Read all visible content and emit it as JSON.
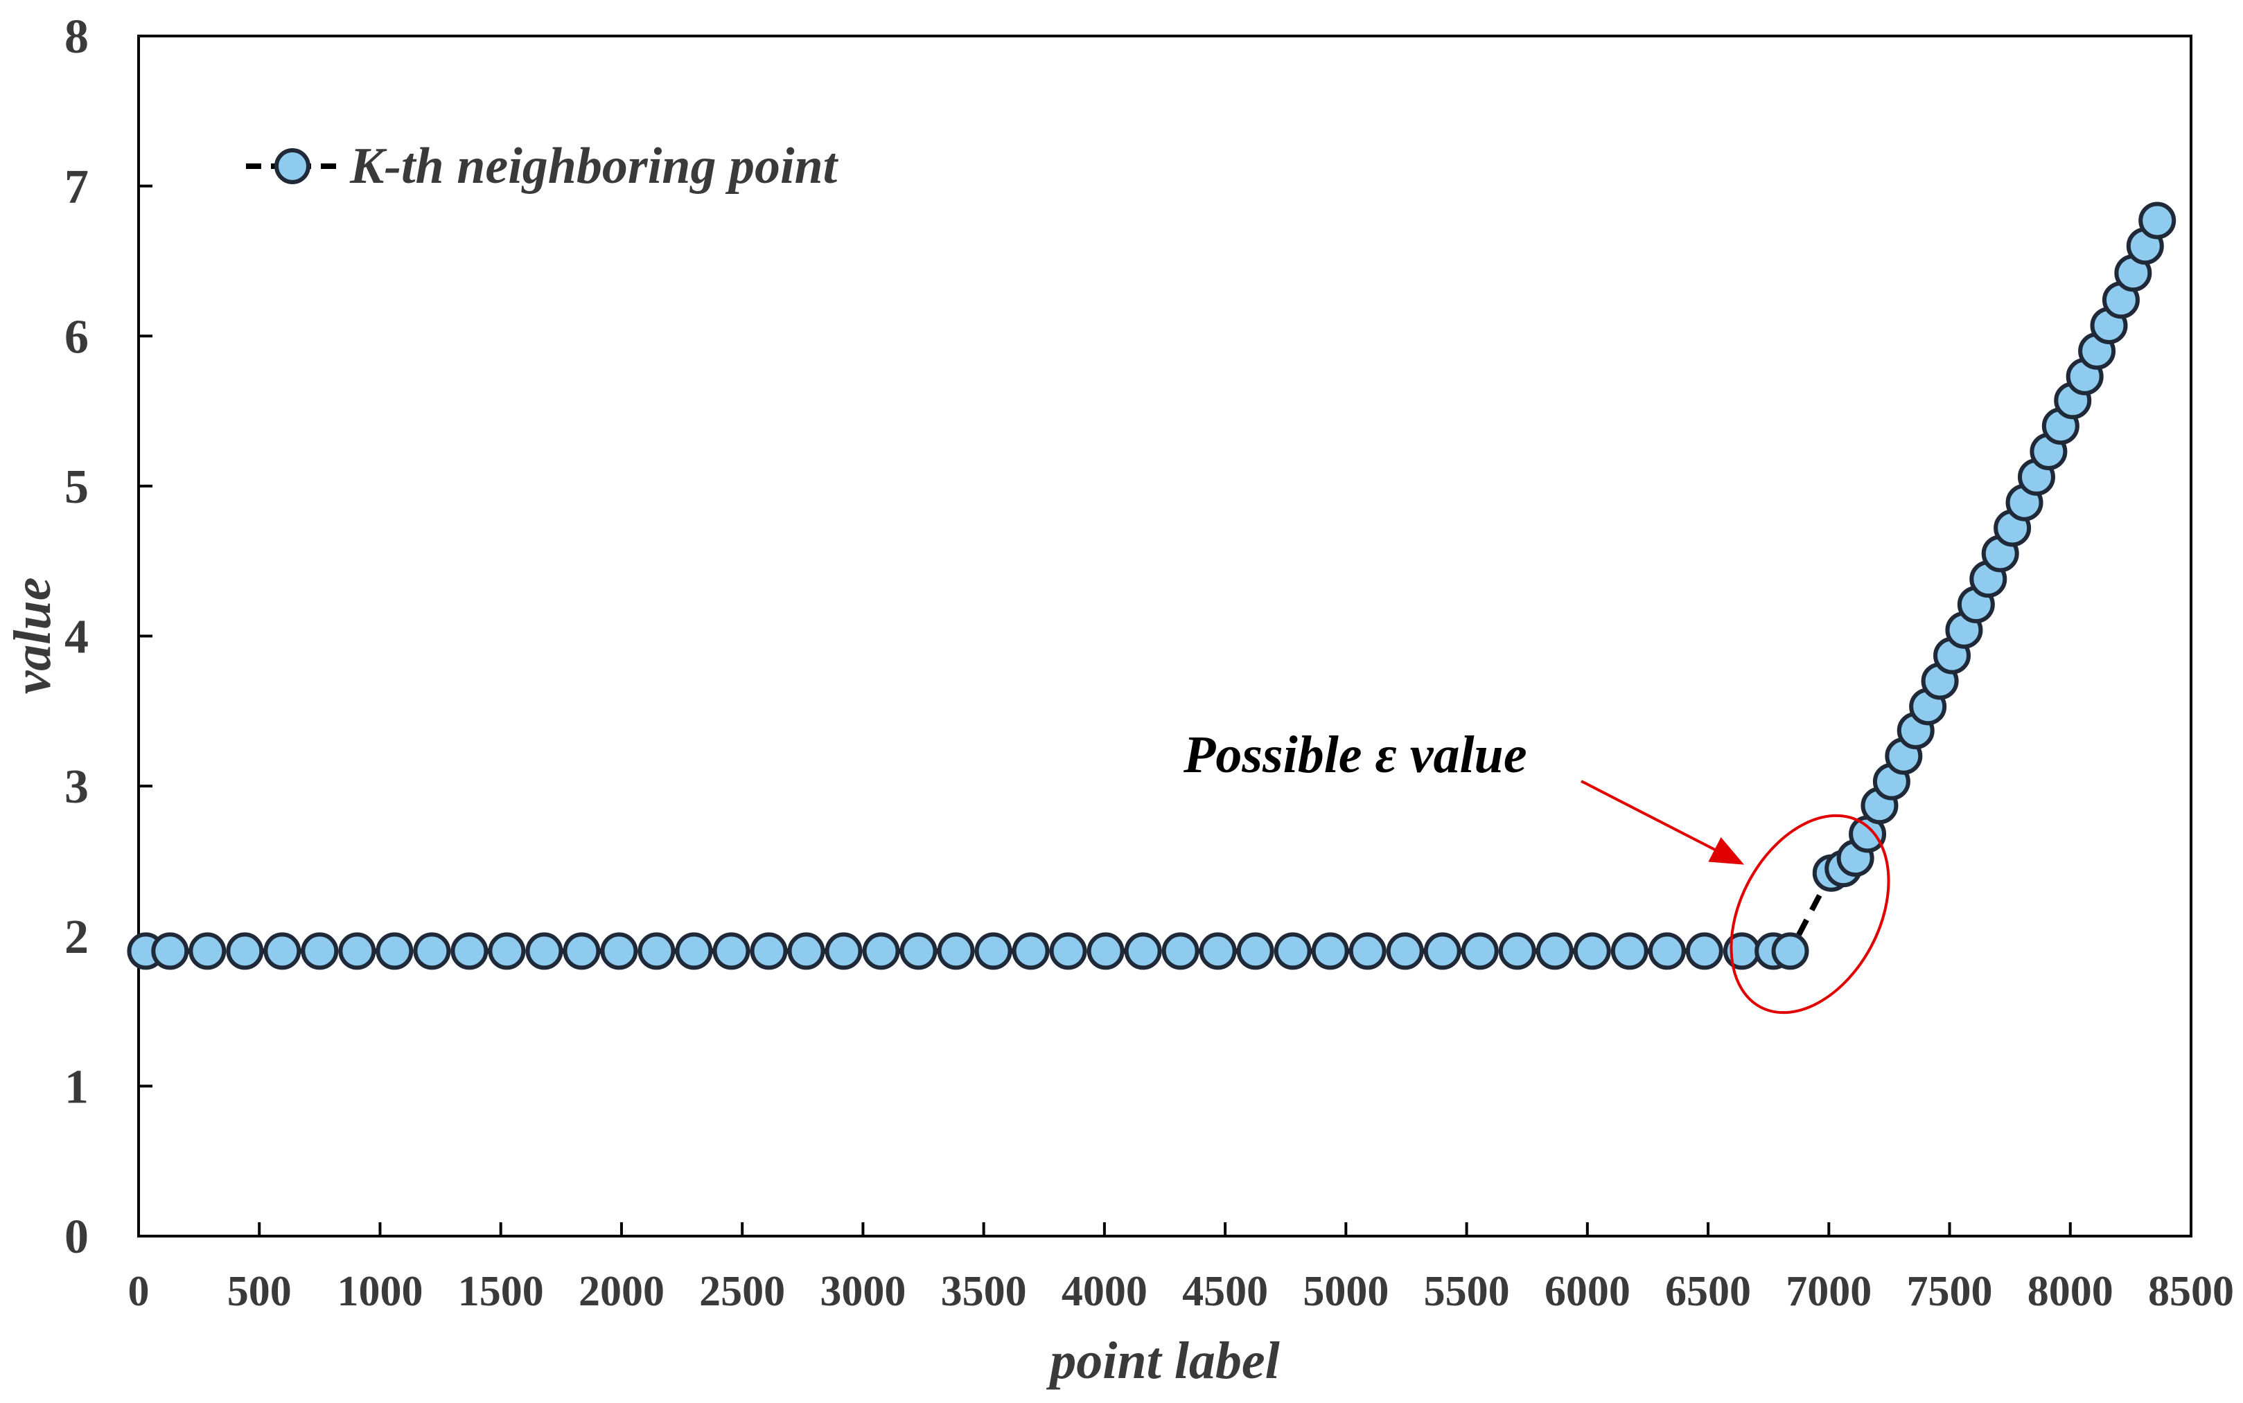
{
  "chart_data": {
    "type": "scatter",
    "title": "",
    "xlabel": "point label",
    "ylabel": "value",
    "xlim": [
      0,
      8500
    ],
    "ylim": [
      0,
      8
    ],
    "x_ticks": [
      0,
      500,
      1000,
      1500,
      2000,
      2500,
      3000,
      3500,
      4000,
      4500,
      5000,
      5500,
      6000,
      6500,
      7000,
      7500,
      8000,
      8500
    ],
    "y_ticks": [
      0,
      1,
      2,
      3,
      4,
      5,
      6,
      7,
      8
    ],
    "grid": false,
    "legend_position": "top-left",
    "colors": {
      "marker_fill": "#8ecbee",
      "marker_stroke": "#1f2937",
      "line": "#000000",
      "annotation": "#e00000",
      "axis": "#000000"
    },
    "series": [
      {
        "name": "K-th neighboring point",
        "line_style": "dashed",
        "points": [
          [
            30,
            1.9
          ],
          [
            130,
            1.9
          ],
          [
            285,
            1.9
          ],
          [
            440,
            1.9
          ],
          [
            595,
            1.9
          ],
          [
            750,
            1.9
          ],
          [
            905,
            1.9
          ],
          [
            1060,
            1.9
          ],
          [
            1215,
            1.9
          ],
          [
            1370,
            1.9
          ],
          [
            1525,
            1.9
          ],
          [
            1680,
            1.9
          ],
          [
            1835,
            1.9
          ],
          [
            1990,
            1.9
          ],
          [
            2145,
            1.9
          ],
          [
            2300,
            1.9
          ],
          [
            2455,
            1.9
          ],
          [
            2610,
            1.9
          ],
          [
            2765,
            1.9
          ],
          [
            2920,
            1.9
          ],
          [
            3075,
            1.9
          ],
          [
            3230,
            1.9
          ],
          [
            3385,
            1.9
          ],
          [
            3540,
            1.9
          ],
          [
            3695,
            1.9
          ],
          [
            3850,
            1.9
          ],
          [
            4005,
            1.9
          ],
          [
            4160,
            1.9
          ],
          [
            4315,
            1.9
          ],
          [
            4470,
            1.9
          ],
          [
            4625,
            1.9
          ],
          [
            4780,
            1.9
          ],
          [
            4935,
            1.9
          ],
          [
            5090,
            1.9
          ],
          [
            5245,
            1.9
          ],
          [
            5400,
            1.9
          ],
          [
            5555,
            1.9
          ],
          [
            5710,
            1.9
          ],
          [
            5865,
            1.9
          ],
          [
            6020,
            1.9
          ],
          [
            6175,
            1.9
          ],
          [
            6330,
            1.9
          ],
          [
            6485,
            1.9
          ],
          [
            6640,
            1.9
          ],
          [
            6770,
            1.9
          ],
          [
            6840,
            1.9
          ],
          [
            7010,
            2.42
          ],
          [
            7060,
            2.45
          ],
          [
            7110,
            2.52
          ],
          [
            7160,
            2.68
          ],
          [
            7210,
            2.87
          ],
          [
            7260,
            3.03
          ],
          [
            7310,
            3.2
          ],
          [
            7360,
            3.37
          ],
          [
            7410,
            3.53
          ],
          [
            7460,
            3.7
          ],
          [
            7510,
            3.87
          ],
          [
            7560,
            4.04
          ],
          [
            7610,
            4.21
          ],
          [
            7660,
            4.38
          ],
          [
            7710,
            4.55
          ],
          [
            7760,
            4.72
          ],
          [
            7810,
            4.89
          ],
          [
            7860,
            5.06
          ],
          [
            7910,
            5.23
          ],
          [
            7960,
            5.4
          ],
          [
            8010,
            5.57
          ],
          [
            8060,
            5.73
          ],
          [
            8110,
            5.9
          ],
          [
            8160,
            6.07
          ],
          [
            8210,
            6.24
          ],
          [
            8260,
            6.42
          ],
          [
            8310,
            6.6
          ],
          [
            8360,
            6.77
          ]
        ]
      }
    ],
    "annotations": [
      {
        "text": "Possible ε value",
        "style": "arrow-to-ellipse",
        "target": [
          6900,
          2.15
        ]
      }
    ]
  }
}
